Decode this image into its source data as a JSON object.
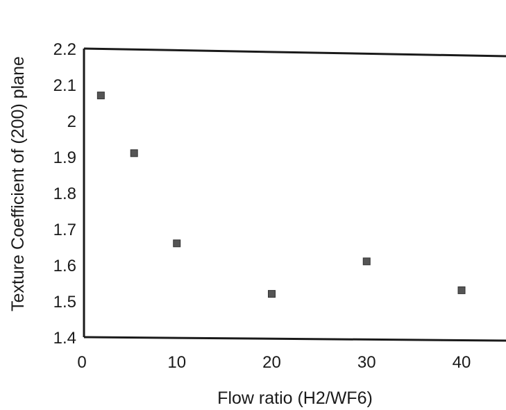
{
  "chart_data": {
    "type": "scatter",
    "title": "",
    "xlabel": "Flow ratio (H2/WF6)",
    "ylabel": "Texture Coefficient of (200) plane",
    "xlim": [
      0,
      45
    ],
    "ylim": [
      1.4,
      2.2
    ],
    "x_ticks": [
      "0",
      "10",
      "20",
      "30",
      "40"
    ],
    "y_ticks": [
      "1.4",
      "1.5",
      "1.6",
      "1.7",
      "1.8",
      "1.9",
      "2",
      "2.1",
      "2.2"
    ],
    "grid": false,
    "legend": "none",
    "marker": "square",
    "series": [
      {
        "x": [
          2,
          5.5,
          10,
          20,
          30,
          40
        ],
        "y": [
          2.07,
          1.91,
          1.66,
          1.52,
          1.61,
          1.53
        ]
      }
    ]
  },
  "colors": {
    "axis": "#1a1a1a",
    "marker": "#555555",
    "background": "#ffffff"
  }
}
